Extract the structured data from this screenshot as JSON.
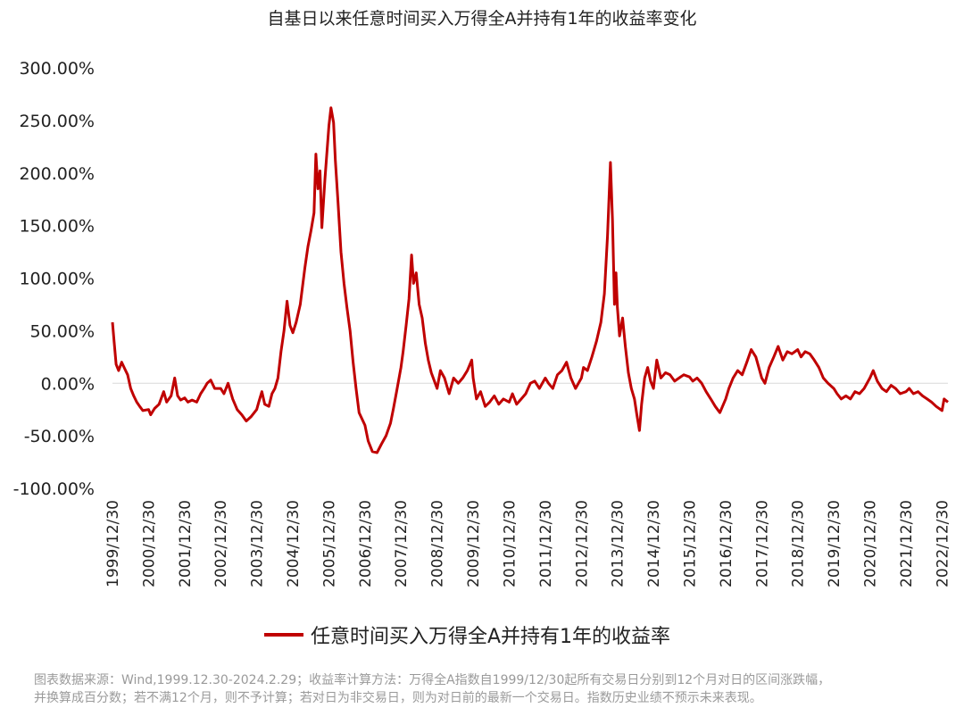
{
  "chart_data": {
    "type": "line",
    "title": "自基日以来任意时间买入万得全A并持有1年的收益率变化",
    "xlabel": "",
    "ylabel": "",
    "ylim": [
      -1.0,
      3.0
    ],
    "yticks": [
      "300.00%",
      "250.00%",
      "200.00%",
      "150.00%",
      "100.00%",
      "50.00%",
      "0.00%",
      "-50.00%",
      "-100.00%"
    ],
    "ytick_values": [
      3.0,
      2.5,
      2.0,
      1.5,
      1.0,
      0.5,
      0.0,
      -0.5,
      -1.0
    ],
    "xticks": [
      "1999/12/30",
      "2000/12/30",
      "2001/12/30",
      "2002/12/30",
      "2003/12/30",
      "2004/12/30",
      "2005/12/30",
      "2006/12/30",
      "2007/12/30",
      "2008/12/30",
      "2009/12/30",
      "2010/12/30",
      "2011/12/30",
      "2012/12/30",
      "2013/12/30",
      "2014/12/30",
      "2015/12/30",
      "2016/12/30",
      "2017/12/30",
      "2018/12/30",
      "2019/12/30",
      "2020/12/30",
      "2021/12/30",
      "2022/12/30"
    ],
    "x_start": "1999-12-30",
    "x_end": "2023-02-28",
    "grid": false,
    "legend": "bottom",
    "series": [
      {
        "name": "任意时间买入万得全A并持有1年的收益率",
        "color": "#c00000",
        "points": [
          [
            "1999-12-30",
            0.58
          ],
          [
            "2000-01-15",
            0.4
          ],
          [
            "2000-02-05",
            0.18
          ],
          [
            "2000-03-01",
            0.12
          ],
          [
            "2000-04-01",
            0.2
          ],
          [
            "2000-05-01",
            0.14
          ],
          [
            "2000-06-01",
            0.08
          ],
          [
            "2000-07-01",
            -0.05
          ],
          [
            "2000-08-01",
            -0.12
          ],
          [
            "2000-09-01",
            -0.18
          ],
          [
            "2000-10-01",
            -0.22
          ],
          [
            "2000-11-01",
            -0.26
          ],
          [
            "2000-12-30",
            -0.25
          ],
          [
            "2001-01-20",
            -0.3
          ],
          [
            "2001-03-01",
            -0.24
          ],
          [
            "2001-04-15",
            -0.2
          ],
          [
            "2001-06-01",
            -0.08
          ],
          [
            "2001-07-01",
            -0.18
          ],
          [
            "2001-08-15",
            -0.12
          ],
          [
            "2001-09-20",
            0.05
          ],
          [
            "2001-10-20",
            -0.12
          ],
          [
            "2001-11-20",
            -0.16
          ],
          [
            "2001-12-30",
            -0.14
          ],
          [
            "2002-02-01",
            -0.18
          ],
          [
            "2002-03-15",
            -0.16
          ],
          [
            "2002-05-01",
            -0.18
          ],
          [
            "2002-06-10",
            -0.1
          ],
          [
            "2002-07-15",
            -0.05
          ],
          [
            "2002-08-15",
            0.0
          ],
          [
            "2002-09-20",
            0.03
          ],
          [
            "2002-10-30",
            -0.05
          ],
          [
            "2002-12-30",
            -0.05
          ],
          [
            "2003-02-01",
            -0.1
          ],
          [
            "2003-03-15",
            0.0
          ],
          [
            "2003-05-01",
            -0.15
          ],
          [
            "2003-06-15",
            -0.25
          ],
          [
            "2003-08-01",
            -0.3
          ],
          [
            "2003-09-15",
            -0.36
          ],
          [
            "2003-11-01",
            -0.32
          ],
          [
            "2003-12-30",
            -0.25
          ],
          [
            "2004-01-20",
            -0.18
          ],
          [
            "2004-02-20",
            -0.08
          ],
          [
            "2004-03-20",
            -0.2
          ],
          [
            "2004-05-01",
            -0.22
          ],
          [
            "2004-06-01",
            -0.1
          ],
          [
            "2004-07-01",
            -0.05
          ],
          [
            "2004-08-01",
            0.05
          ],
          [
            "2004-09-01",
            0.3
          ],
          [
            "2004-10-01",
            0.5
          ],
          [
            "2004-11-01",
            0.78
          ],
          [
            "2004-12-01",
            0.55
          ],
          [
            "2004-12-30",
            0.48
          ],
          [
            "2005-02-01",
            0.58
          ],
          [
            "2005-03-15",
            0.75
          ],
          [
            "2005-05-01",
            1.1
          ],
          [
            "2005-06-01",
            1.3
          ],
          [
            "2005-07-01",
            1.45
          ],
          [
            "2005-08-01",
            1.62
          ],
          [
            "2005-08-20",
            2.18
          ],
          [
            "2005-09-10",
            1.85
          ],
          [
            "2005-10-01",
            2.02
          ],
          [
            "2005-10-20",
            1.48
          ],
          [
            "2005-11-20",
            1.95
          ],
          [
            "2005-12-30",
            2.45
          ],
          [
            "2006-01-20",
            2.62
          ],
          [
            "2006-02-15",
            2.48
          ],
          [
            "2006-03-05",
            2.12
          ],
          [
            "2006-04-01",
            1.72
          ],
          [
            "2006-05-01",
            1.25
          ],
          [
            "2006-06-01",
            0.95
          ],
          [
            "2006-07-01",
            0.72
          ],
          [
            "2006-08-01",
            0.5
          ],
          [
            "2006-09-01",
            0.2
          ],
          [
            "2006-10-01",
            -0.05
          ],
          [
            "2006-11-01",
            -0.28
          ],
          [
            "2006-12-30",
            -0.4
          ],
          [
            "2007-02-01",
            -0.55
          ],
          [
            "2007-03-15",
            -0.65
          ],
          [
            "2007-05-01",
            -0.66
          ],
          [
            "2007-06-15",
            -0.58
          ],
          [
            "2007-08-01",
            -0.5
          ],
          [
            "2007-09-15",
            -0.38
          ],
          [
            "2007-10-15",
            -0.24
          ],
          [
            "2007-11-15",
            -0.08
          ],
          [
            "2007-12-30",
            0.15
          ],
          [
            "2008-01-20",
            0.3
          ],
          [
            "2008-02-20",
            0.55
          ],
          [
            "2008-03-20",
            0.8
          ],
          [
            "2008-04-15",
            1.22
          ],
          [
            "2008-05-05",
            0.95
          ],
          [
            "2008-06-01",
            1.05
          ],
          [
            "2008-07-01",
            0.75
          ],
          [
            "2008-08-01",
            0.62
          ],
          [
            "2008-09-01",
            0.38
          ],
          [
            "2008-10-01",
            0.22
          ],
          [
            "2008-11-01",
            0.1
          ],
          [
            "2008-12-30",
            -0.05
          ],
          [
            "2009-02-01",
            0.12
          ],
          [
            "2009-03-15",
            0.05
          ],
          [
            "2009-05-01",
            -0.1
          ],
          [
            "2009-06-15",
            0.05
          ],
          [
            "2009-08-01",
            0.0
          ],
          [
            "2009-09-15",
            0.05
          ],
          [
            "2009-11-01",
            0.12
          ],
          [
            "2009-12-15",
            0.22
          ],
          [
            "2009-12-30",
            0.05
          ],
          [
            "2010-02-01",
            -0.15
          ],
          [
            "2010-03-15",
            -0.08
          ],
          [
            "2010-05-01",
            -0.22
          ],
          [
            "2010-06-15",
            -0.18
          ],
          [
            "2010-08-01",
            -0.12
          ],
          [
            "2010-09-15",
            -0.2
          ],
          [
            "2010-11-01",
            -0.15
          ],
          [
            "2010-12-30",
            -0.18
          ],
          [
            "2011-02-01",
            -0.1
          ],
          [
            "2011-03-15",
            -0.2
          ],
          [
            "2011-05-01",
            -0.15
          ],
          [
            "2011-06-15",
            -0.1
          ],
          [
            "2011-08-01",
            0.0
          ],
          [
            "2011-09-15",
            0.02
          ],
          [
            "2011-11-01",
            -0.05
          ],
          [
            "2011-12-30",
            0.05
          ],
          [
            "2012-02-01",
            0.0
          ],
          [
            "2012-03-15",
            -0.05
          ],
          [
            "2012-05-01",
            0.08
          ],
          [
            "2012-06-15",
            0.12
          ],
          [
            "2012-08-01",
            0.2
          ],
          [
            "2012-09-15",
            0.05
          ],
          [
            "2012-11-01",
            -0.05
          ],
          [
            "2012-12-30",
            0.05
          ],
          [
            "2013-01-20",
            0.15
          ],
          [
            "2013-03-01",
            0.12
          ],
          [
            "2013-04-15",
            0.25
          ],
          [
            "2013-06-01",
            0.4
          ],
          [
            "2013-07-15",
            0.58
          ],
          [
            "2013-08-20",
            0.85
          ],
          [
            "2013-09-20",
            1.4
          ],
          [
            "2013-10-20",
            2.1
          ],
          [
            "2013-11-10",
            1.55
          ],
          [
            "2013-11-30",
            0.75
          ],
          [
            "2013-12-15",
            1.05
          ],
          [
            "2013-12-30",
            0.72
          ],
          [
            "2014-01-20",
            0.45
          ],
          [
            "2014-02-20",
            0.62
          ],
          [
            "2014-03-20",
            0.35
          ],
          [
            "2014-04-20",
            0.1
          ],
          [
            "2014-05-20",
            -0.05
          ],
          [
            "2014-06-20",
            -0.15
          ],
          [
            "2014-07-15",
            -0.3
          ],
          [
            "2014-08-10",
            -0.45
          ],
          [
            "2014-09-01",
            -0.2
          ],
          [
            "2014-10-01",
            0.05
          ],
          [
            "2014-11-01",
            0.15
          ],
          [
            "2014-12-01",
            0.02
          ],
          [
            "2014-12-30",
            -0.05
          ],
          [
            "2015-02-01",
            0.22
          ],
          [
            "2015-03-15",
            0.05
          ],
          [
            "2015-05-01",
            0.1
          ],
          [
            "2015-06-15",
            0.08
          ],
          [
            "2015-08-01",
            0.02
          ],
          [
            "2015-09-15",
            0.05
          ],
          [
            "2015-11-01",
            0.08
          ],
          [
            "2015-12-30",
            0.06
          ],
          [
            "2016-02-01",
            0.02
          ],
          [
            "2016-03-15",
            0.05
          ],
          [
            "2016-05-01",
            0.0
          ],
          [
            "2016-06-15",
            -0.08
          ],
          [
            "2016-08-01",
            -0.15
          ],
          [
            "2016-09-15",
            -0.22
          ],
          [
            "2016-11-01",
            -0.28
          ],
          [
            "2016-12-30",
            -0.15
          ],
          [
            "2017-02-01",
            -0.05
          ],
          [
            "2017-03-15",
            0.05
          ],
          [
            "2017-05-01",
            0.12
          ],
          [
            "2017-06-15",
            0.08
          ],
          [
            "2017-08-01",
            0.2
          ],
          [
            "2017-09-15",
            0.32
          ],
          [
            "2017-11-01",
            0.25
          ],
          [
            "2017-12-30",
            0.05
          ],
          [
            "2018-02-01",
            0.0
          ],
          [
            "2018-03-15",
            0.15
          ],
          [
            "2018-05-01",
            0.25
          ],
          [
            "2018-06-15",
            0.35
          ],
          [
            "2018-08-01",
            0.22
          ],
          [
            "2018-09-15",
            0.3
          ],
          [
            "2018-11-01",
            0.28
          ],
          [
            "2018-12-30",
            0.32
          ],
          [
            "2019-02-01",
            0.25
          ],
          [
            "2019-03-15",
            0.3
          ],
          [
            "2019-05-01",
            0.28
          ],
          [
            "2019-06-15",
            0.22
          ],
          [
            "2019-08-01",
            0.15
          ],
          [
            "2019-09-15",
            0.05
          ],
          [
            "2019-11-01",
            0.0
          ],
          [
            "2019-12-30",
            -0.05
          ],
          [
            "2020-02-01",
            -0.1
          ],
          [
            "2020-03-15",
            -0.15
          ],
          [
            "2020-05-01",
            -0.12
          ],
          [
            "2020-06-15",
            -0.15
          ],
          [
            "2020-08-01",
            -0.08
          ],
          [
            "2020-09-15",
            -0.1
          ],
          [
            "2020-11-01",
            -0.05
          ],
          [
            "2020-12-30",
            0.05
          ],
          [
            "2021-02-01",
            0.12
          ],
          [
            "2021-03-15",
            0.02
          ],
          [
            "2021-05-01",
            -0.05
          ],
          [
            "2021-06-15",
            -0.08
          ],
          [
            "2021-08-01",
            -0.02
          ],
          [
            "2021-09-15",
            -0.05
          ],
          [
            "2021-11-01",
            -0.1
          ],
          [
            "2021-12-30",
            -0.08
          ],
          [
            "2022-02-01",
            -0.05
          ],
          [
            "2022-03-15",
            -0.1
          ],
          [
            "2022-05-01",
            -0.08
          ],
          [
            "2022-06-15",
            -0.12
          ],
          [
            "2022-08-01",
            -0.15
          ],
          [
            "2022-09-15",
            -0.18
          ],
          [
            "2022-11-01",
            -0.22
          ],
          [
            "2022-12-30",
            -0.26
          ],
          [
            "2023-01-20",
            -0.15
          ],
          [
            "2023-02-28",
            -0.18
          ]
        ]
      }
    ]
  },
  "footnote": {
    "line1": "图表数据来源：Wind,1999.12.30-2024.2.29；收益率计算方法：万得全A指数自1999/12/30起所有交易日分别到12个月对日的区间涨跌幅，",
    "line2": "并换算成百分数；若不满12个月，则不予计算；若对日为非交易日，则为对日前的最新一个交易日。指数历史业绩不预示未来表现。"
  }
}
